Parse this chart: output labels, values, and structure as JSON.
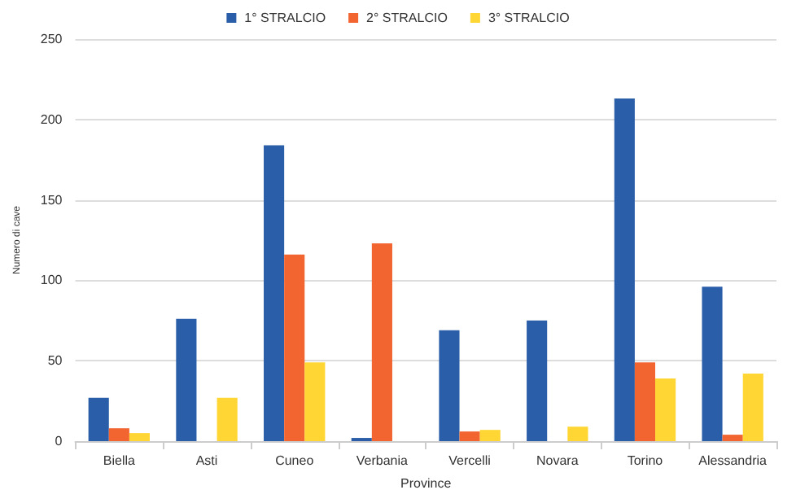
{
  "chart_data": {
    "type": "bar",
    "xlabel": "Province",
    "ylabel": "Numero di cave",
    "categories": [
      "Biella",
      "Asti",
      "Cuneo",
      "Verbania",
      "Vercelli",
      "Novara",
      "Torino",
      "Alessandria"
    ],
    "series": [
      {
        "name": "1° STRALCIO",
        "color": "#2a5ea8",
        "values": [
          27,
          76,
          184,
          2,
          69,
          75,
          213,
          96
        ]
      },
      {
        "name": "2° STRALCIO",
        "color": "#f26430",
        "values": [
          8,
          0,
          116,
          123,
          6,
          0,
          49,
          4
        ]
      },
      {
        "name": "3° STRALCIO",
        "color": "#ffd633",
        "values": [
          5,
          27,
          49,
          0,
          7,
          9,
          39,
          42
        ]
      }
    ],
    "ylim": [
      0,
      250
    ],
    "yticks": [
      0,
      50,
      100,
      150,
      200,
      250
    ],
    "grid": "y",
    "legend": "top"
  }
}
